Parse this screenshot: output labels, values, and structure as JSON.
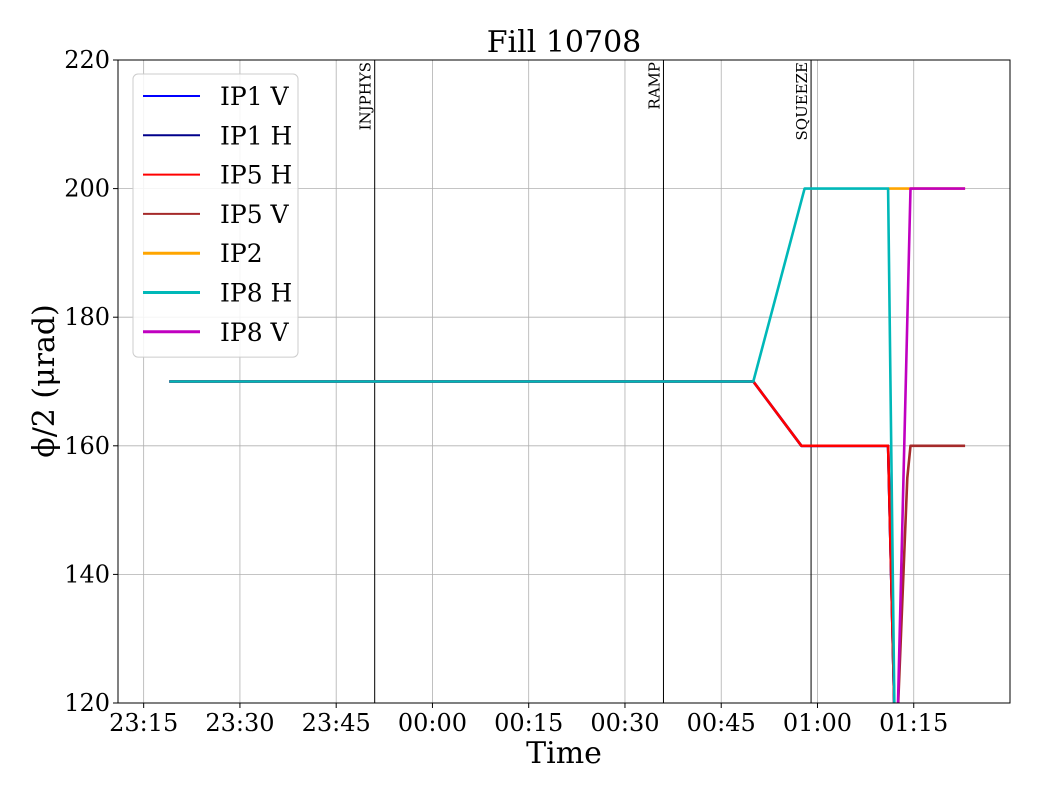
{
  "chart_data": {
    "type": "line",
    "title": "Fill 10708",
    "xlabel": "Time",
    "ylabel": "ϕ/2 (μrad)",
    "x_unit": "time of day (HH:MM), starting 23:10; times after midnight written with hour 24+",
    "xlim": [
      "23:11",
      "25:30"
    ],
    "ylim": [
      120,
      220
    ],
    "grid": true,
    "legend_position": "upper-left",
    "x_ticks": [
      {
        "time": "23:15",
        "label": "23:15"
      },
      {
        "time": "23:30",
        "label": "23:30"
      },
      {
        "time": "23:45",
        "label": "23:45"
      },
      {
        "time": "24:00",
        "label": "00:00"
      },
      {
        "time": "24:15",
        "label": "00:15"
      },
      {
        "time": "24:30",
        "label": "00:30"
      },
      {
        "time": "24:45",
        "label": "00:45"
      },
      {
        "time": "25:00",
        "label": "01:00"
      },
      {
        "time": "25:15",
        "label": "01:15"
      }
    ],
    "y_ticks": [
      120,
      140,
      160,
      180,
      200,
      220
    ],
    "events": [
      {
        "label": "INJPHYS",
        "time": "23:51"
      },
      {
        "label": "RAMP",
        "time": "24:36"
      },
      {
        "label": "SQUEEZE",
        "time": "24:59"
      }
    ],
    "series": [
      {
        "name": "IP1 V",
        "color": "#0000ff",
        "points": [
          [
            "23:19",
            170
          ],
          [
            "24:50",
            170
          ],
          [
            "24:57.5",
            160
          ],
          [
            "25:11",
            160
          ],
          [
            "25:12",
            118
          ]
        ]
      },
      {
        "name": "IP1 H",
        "color": "#00008b",
        "points": [
          [
            "23:19",
            170
          ],
          [
            "24:50",
            170
          ],
          [
            "24:57.5",
            160
          ],
          [
            "25:11",
            160
          ],
          [
            "25:12",
            118
          ]
        ]
      },
      {
        "name": "IP5 H",
        "color": "#ff0000",
        "points": [
          [
            "23:19",
            170
          ],
          [
            "24:50",
            170
          ],
          [
            "24:57.5",
            160
          ],
          [
            "25:11",
            160
          ],
          [
            "25:12",
            118
          ]
        ]
      },
      {
        "name": "IP5 V",
        "color": "#a52a2a",
        "points": [
          [
            "25:12.5",
            118
          ],
          [
            "25:14",
            155
          ],
          [
            "25:14.5",
            160
          ],
          [
            "25:23",
            160
          ]
        ]
      },
      {
        "name": "IP2",
        "color": "#ffa500",
        "points": [
          [
            "25:11",
            200
          ],
          [
            "25:23",
            200
          ]
        ]
      },
      {
        "name": "IP8 H",
        "color": "#00b8b8",
        "points": [
          [
            "23:19",
            170
          ],
          [
            "24:50",
            170
          ],
          [
            "24:58",
            200
          ],
          [
            "25:11",
            200
          ],
          [
            "25:12",
            118
          ]
        ]
      },
      {
        "name": "IP8 V",
        "color": "#c000c0",
        "points": [
          [
            "25:12.5",
            118
          ],
          [
            "25:14.5",
            200
          ],
          [
            "25:23",
            200
          ]
        ]
      }
    ]
  }
}
